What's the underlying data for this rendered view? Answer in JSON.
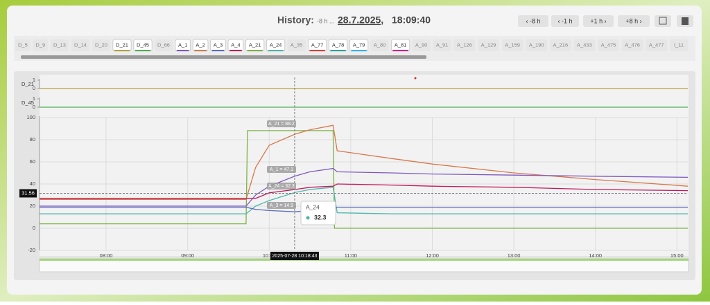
{
  "header": {
    "title": "History:",
    "range": "-8 h ...",
    "date": "28.7.2025,",
    "time": "18:09:40",
    "buttons": [
      "‹ -8 h",
      "‹ -1 h",
      "+1 h ›",
      "+8 h ›"
    ]
  },
  "tabs": [
    {
      "label": "D_5"
    },
    {
      "label": "D_9"
    },
    {
      "label": "D_13"
    },
    {
      "label": "D_14"
    },
    {
      "label": "D_20"
    },
    {
      "label": "D_21",
      "color": "#b5a13b"
    },
    {
      "label": "D_45",
      "color": "#4caf50"
    },
    {
      "label": "D_66"
    },
    {
      "label": "A_1",
      "color": "#7e57c2"
    },
    {
      "label": "A_2",
      "color": "#d9774b"
    },
    {
      "label": "A_3",
      "color": "#5c6bc0"
    },
    {
      "label": "A_4",
      "color": "#c2185b"
    },
    {
      "label": "A_21",
      "color": "#7cb342"
    },
    {
      "label": "A_24",
      "color": "#4db6ac"
    },
    {
      "label": "A_35"
    },
    {
      "label": "A_77",
      "color": "#e53935"
    },
    {
      "label": "A_78",
      "color": "#26a69a"
    },
    {
      "label": "A_79",
      "color": "#29b6f6"
    },
    {
      "label": "A_80"
    },
    {
      "label": "A_81",
      "color": "#d81b8c"
    },
    {
      "label": "A_90"
    },
    {
      "label": "A_91"
    },
    {
      "label": "A_126"
    },
    {
      "label": "A_129"
    },
    {
      "label": "A_159"
    },
    {
      "label": "A_190"
    },
    {
      "label": "A_216"
    },
    {
      "label": "A_433"
    },
    {
      "label": "A_475"
    },
    {
      "label": "A_476"
    },
    {
      "label": "A_477"
    },
    {
      "label": "I_11"
    }
  ],
  "chart_data": [
    {
      "type": "line",
      "ylabel": "D_21",
      "xlim": [
        "07:11",
        "15:08"
      ],
      "ylim": [
        0,
        1
      ],
      "yticks": [
        0,
        1
      ],
      "series": [
        {
          "name": "D_21",
          "color": "#b5a13b",
          "x": [
            "07:11",
            "15:08"
          ],
          "values": [
            0,
            0
          ]
        }
      ]
    },
    {
      "type": "line",
      "ylabel": "D_45",
      "xlim": [
        "07:11",
        "15:08"
      ],
      "ylim": [
        0,
        1
      ],
      "yticks": [
        0,
        1
      ],
      "series": [
        {
          "name": "D_45",
          "color": "#4caf50",
          "x": [
            "07:11",
            "15:08"
          ],
          "values": [
            0,
            0
          ]
        }
      ]
    },
    {
      "type": "line",
      "xlim": [
        "07:11",
        "15:08"
      ],
      "ylim": [
        -20,
        100
      ],
      "yticks": [
        -20,
        0,
        20,
        40,
        60,
        80,
        100
      ],
      "xticks": [
        "08:00",
        "09:00",
        "10:00",
        "11:00",
        "12:00",
        "13:00",
        "14:00",
        "15:00"
      ],
      "grid": true,
      "series": [
        {
          "name": "A_21",
          "color": "#7cb342",
          "x": [
            "07:11",
            "09:43",
            "09:44",
            "10:47",
            "10:48",
            "15:08"
          ],
          "values": [
            4,
            4,
            88.2,
            88.2,
            0,
            0
          ]
        },
        {
          "name": "A_2",
          "color": "#d9774b",
          "x": [
            "07:11",
            "09:43",
            "09:50",
            "10:00",
            "10:19",
            "10:30",
            "10:47",
            "10:50",
            "11:30",
            "12:00",
            "13:00",
            "14:00",
            "15:08"
          ],
          "values": [
            26,
            26,
            55,
            75,
            85,
            89,
            93,
            70,
            63,
            58,
            50,
            44,
            38
          ]
        },
        {
          "name": "A_1",
          "color": "#7e57c2",
          "x": [
            "07:11",
            "09:43",
            "09:50",
            "10:00",
            "10:19",
            "10:30",
            "10:47",
            "10:50",
            "11:30",
            "12:00",
            "13:00",
            "14:00",
            "15:08"
          ],
          "values": [
            20,
            20,
            30,
            38,
            47.1,
            51,
            54,
            51,
            50,
            49,
            48,
            47,
            46
          ]
        },
        {
          "name": "A_4",
          "color": "#c2185b",
          "x": [
            "07:11",
            "09:43",
            "09:50",
            "10:00",
            "10:19",
            "10:30",
            "10:47",
            "10:50",
            "11:30",
            "12:00",
            "13:00",
            "14:00",
            "15:08"
          ],
          "values": [
            27,
            27,
            27,
            32,
            35,
            37,
            38,
            40,
            39,
            38,
            37,
            35,
            34
          ]
        },
        {
          "name": "A_24",
          "color": "#4db6ac",
          "x": [
            "07:11",
            "09:43",
            "09:50",
            "10:00",
            "10:19",
            "10:30",
            "10:47",
            "10:50",
            "11:30",
            "12:00",
            "13:00",
            "14:00",
            "15:08"
          ],
          "values": [
            13,
            13,
            20,
            25,
            32.3,
            35,
            37,
            14,
            13,
            13,
            13,
            13,
            13
          ]
        },
        {
          "name": "A_3",
          "color": "#5c6bc0",
          "x": [
            "07:11",
            "09:43",
            "09:50",
            "10:00",
            "10:19",
            "10:30",
            "10:47",
            "10:50",
            "11:30",
            "12:00",
            "13:00",
            "14:00",
            "15:08"
          ],
          "values": [
            19,
            19,
            17,
            16,
            14.9,
            16,
            17,
            19,
            19,
            19,
            19,
            19,
            19
          ]
        }
      ],
      "annotations": [
        "A_21 = 88.2",
        "A_1 = 47.1",
        "A_24 = 32.3",
        "A_3 = 14.9"
      ],
      "cursor": {
        "x": "10:18:43",
        "y": 31.56,
        "label": "2025-07-28 10:18:43"
      },
      "tooltip": {
        "series": "A_24",
        "value": 32.3
      }
    }
  ]
}
